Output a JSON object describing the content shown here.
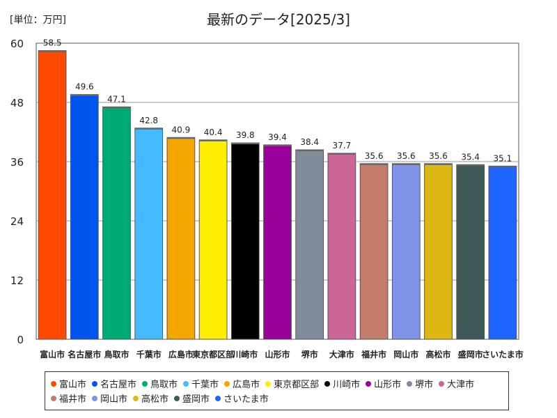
{
  "chart_data": {
    "type": "bar",
    "title": "最新のデータ[2025/3]",
    "unit_label": "[単位：万円]",
    "categories": [
      "富山市",
      "名古屋市",
      "鳥取市",
      "千葉市",
      "広島市",
      "東京都区部",
      "川崎市",
      "山形市",
      "堺市",
      "大津市",
      "福井市",
      "岡山市",
      "高松市",
      "盛岡市",
      "さいたま市"
    ],
    "tick_labels": [
      "富山市",
      "名古屋市",
      "鳥取市",
      "千葉市",
      "広島市",
      "東京都区部",
      "川崎市",
      "山形市",
      "堺市",
      "大津市",
      "福井市",
      "岡山市",
      "高松市",
      "盛岡市",
      "さいたま市"
    ],
    "values": [
      58.5,
      49.6,
      47.1,
      42.8,
      40.9,
      40.4,
      39.8,
      39.4,
      38.4,
      37.7,
      35.6,
      35.6,
      35.6,
      35.4,
      35.1
    ],
    "value_labels": [
      "58.5",
      "49.6",
      "47.1",
      "42.8",
      "40.9",
      "40.4",
      "39.8",
      "39.4",
      "38.4",
      "37.7",
      "35.6",
      "35.6",
      "35.6",
      "35.4",
      "35.1"
    ],
    "colors": [
      "#ff4a00",
      "#0055ee",
      "#00aa77",
      "#44bbff",
      "#f5a500",
      "#ffee00",
      "#000000",
      "#990099",
      "#7f8c99",
      "#cc6699",
      "#c47c6a",
      "#7f93e8",
      "#ddb812",
      "#3f5858",
      "#1e64ff"
    ],
    "ylim": [
      0,
      60
    ],
    "yticks": [
      0,
      12,
      24,
      36,
      48,
      60
    ],
    "ytick_labels": [
      "0",
      "12",
      "24",
      "36",
      "48",
      "60"
    ],
    "xlabel": "",
    "ylabel": "",
    "grid": true,
    "legend_position": "bottom"
  }
}
